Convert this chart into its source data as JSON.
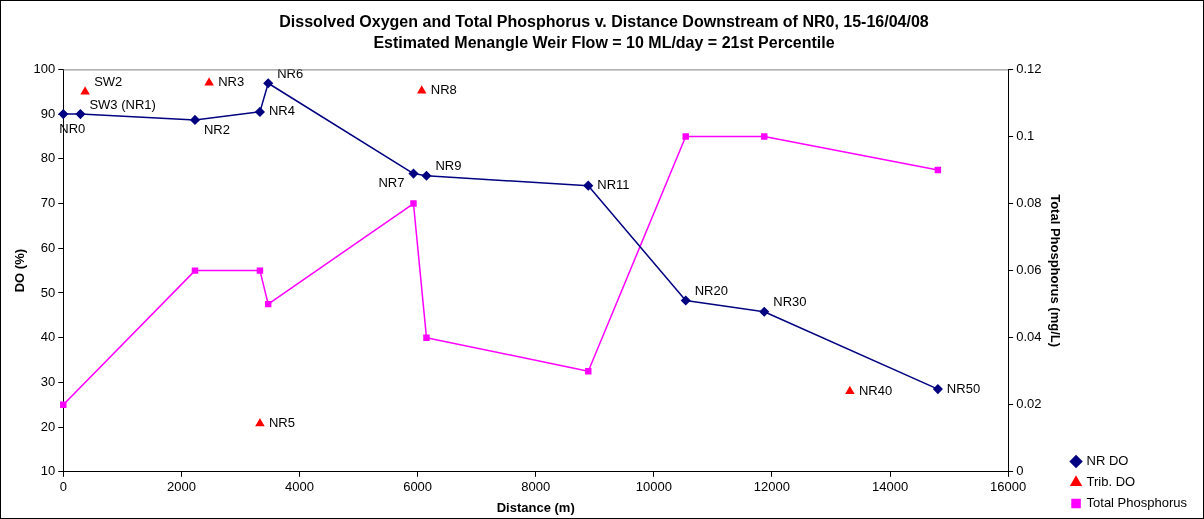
{
  "chart_data": {
    "type": "line",
    "title": "Dissolved Oxygen and Total Phosphorus v. Distance Downstream of NR0, 15-16/04/08",
    "subtitle": "Estimated Menangle Weir Flow = 10 ML/day = 21st Percentile",
    "xlabel": "Distance (m)",
    "ylabel": "DO (%)",
    "y2label": "Total Phosphorus (mg/L)",
    "xlim": [
      0,
      16000
    ],
    "xticks": [
      0,
      2000,
      4000,
      6000,
      8000,
      10000,
      12000,
      14000,
      16000
    ],
    "ylim": [
      10,
      100
    ],
    "yticks": [
      10,
      20,
      30,
      40,
      50,
      60,
      70,
      80,
      90,
      100
    ],
    "y2lim": [
      0,
      0.12
    ],
    "y2ticks": [
      0,
      0.02,
      0.04,
      0.06,
      0.08,
      0.1,
      0.12
    ],
    "grid": false,
    "legend": "bottom right",
    "series": [
      {
        "name": "NR DO",
        "marker": "diamond",
        "color": "#000080",
        "x": [
          0,
          290,
          2230,
          3330,
          3470,
          5930,
          6150,
          8890,
          10540,
          11870,
          14810
        ],
        "values": [
          90,
          90,
          88.7,
          90.5,
          96.9,
          76.7,
          76.2,
          74,
          48.3,
          45.8,
          28.5
        ]
      },
      {
        "name": "Trib. DO",
        "type": "scatter",
        "marker": "triangle",
        "color": "#ff0000",
        "x": [
          370,
          2470,
          3330,
          6070,
          13320
        ],
        "values": [
          95,
          97,
          20.8,
          95.2,
          28
        ]
      },
      {
        "name": "Total Phosphorus",
        "marker": "square",
        "color": "#ff00ff",
        "axis": "y2",
        "x": [
          0,
          2230,
          3330,
          3470,
          5930,
          6150,
          8890,
          10540,
          11870,
          14810
        ],
        "values": [
          0.02,
          0.06,
          0.06,
          0.05,
          0.08,
          0.04,
          0.03,
          0.1,
          0.1,
          0.09
        ]
      }
    ],
    "annotations": [
      {
        "text": "NR0",
        "x": 0,
        "y": 90
      },
      {
        "text": "SW3 (NR1)",
        "x": 290,
        "y": 90
      },
      {
        "text": "NR2",
        "x": 2230,
        "y": 88.7
      },
      {
        "text": "NR4",
        "x": 3330,
        "y": 90.5
      },
      {
        "text": "NR6",
        "x": 3470,
        "y": 96.9
      },
      {
        "text": "NR7",
        "x": 5930,
        "y": 76.7
      },
      {
        "text": "NR9",
        "x": 6150,
        "y": 76.2
      },
      {
        "text": "NR11",
        "x": 8890,
        "y": 74
      },
      {
        "text": "NR20",
        "x": 10540,
        "y": 48.3
      },
      {
        "text": "NR30",
        "x": 11870,
        "y": 45.8
      },
      {
        "text": "NR50",
        "x": 14810,
        "y": 28.5
      },
      {
        "text": "SW2",
        "x": 370,
        "y": 95
      },
      {
        "text": "NR3",
        "x": 2470,
        "y": 97
      },
      {
        "text": "NR5",
        "x": 3330,
        "y": 20.8
      },
      {
        "text": "NR8",
        "x": 6070,
        "y": 95.2
      },
      {
        "text": "NR40",
        "x": 13320,
        "y": 28
      }
    ]
  }
}
